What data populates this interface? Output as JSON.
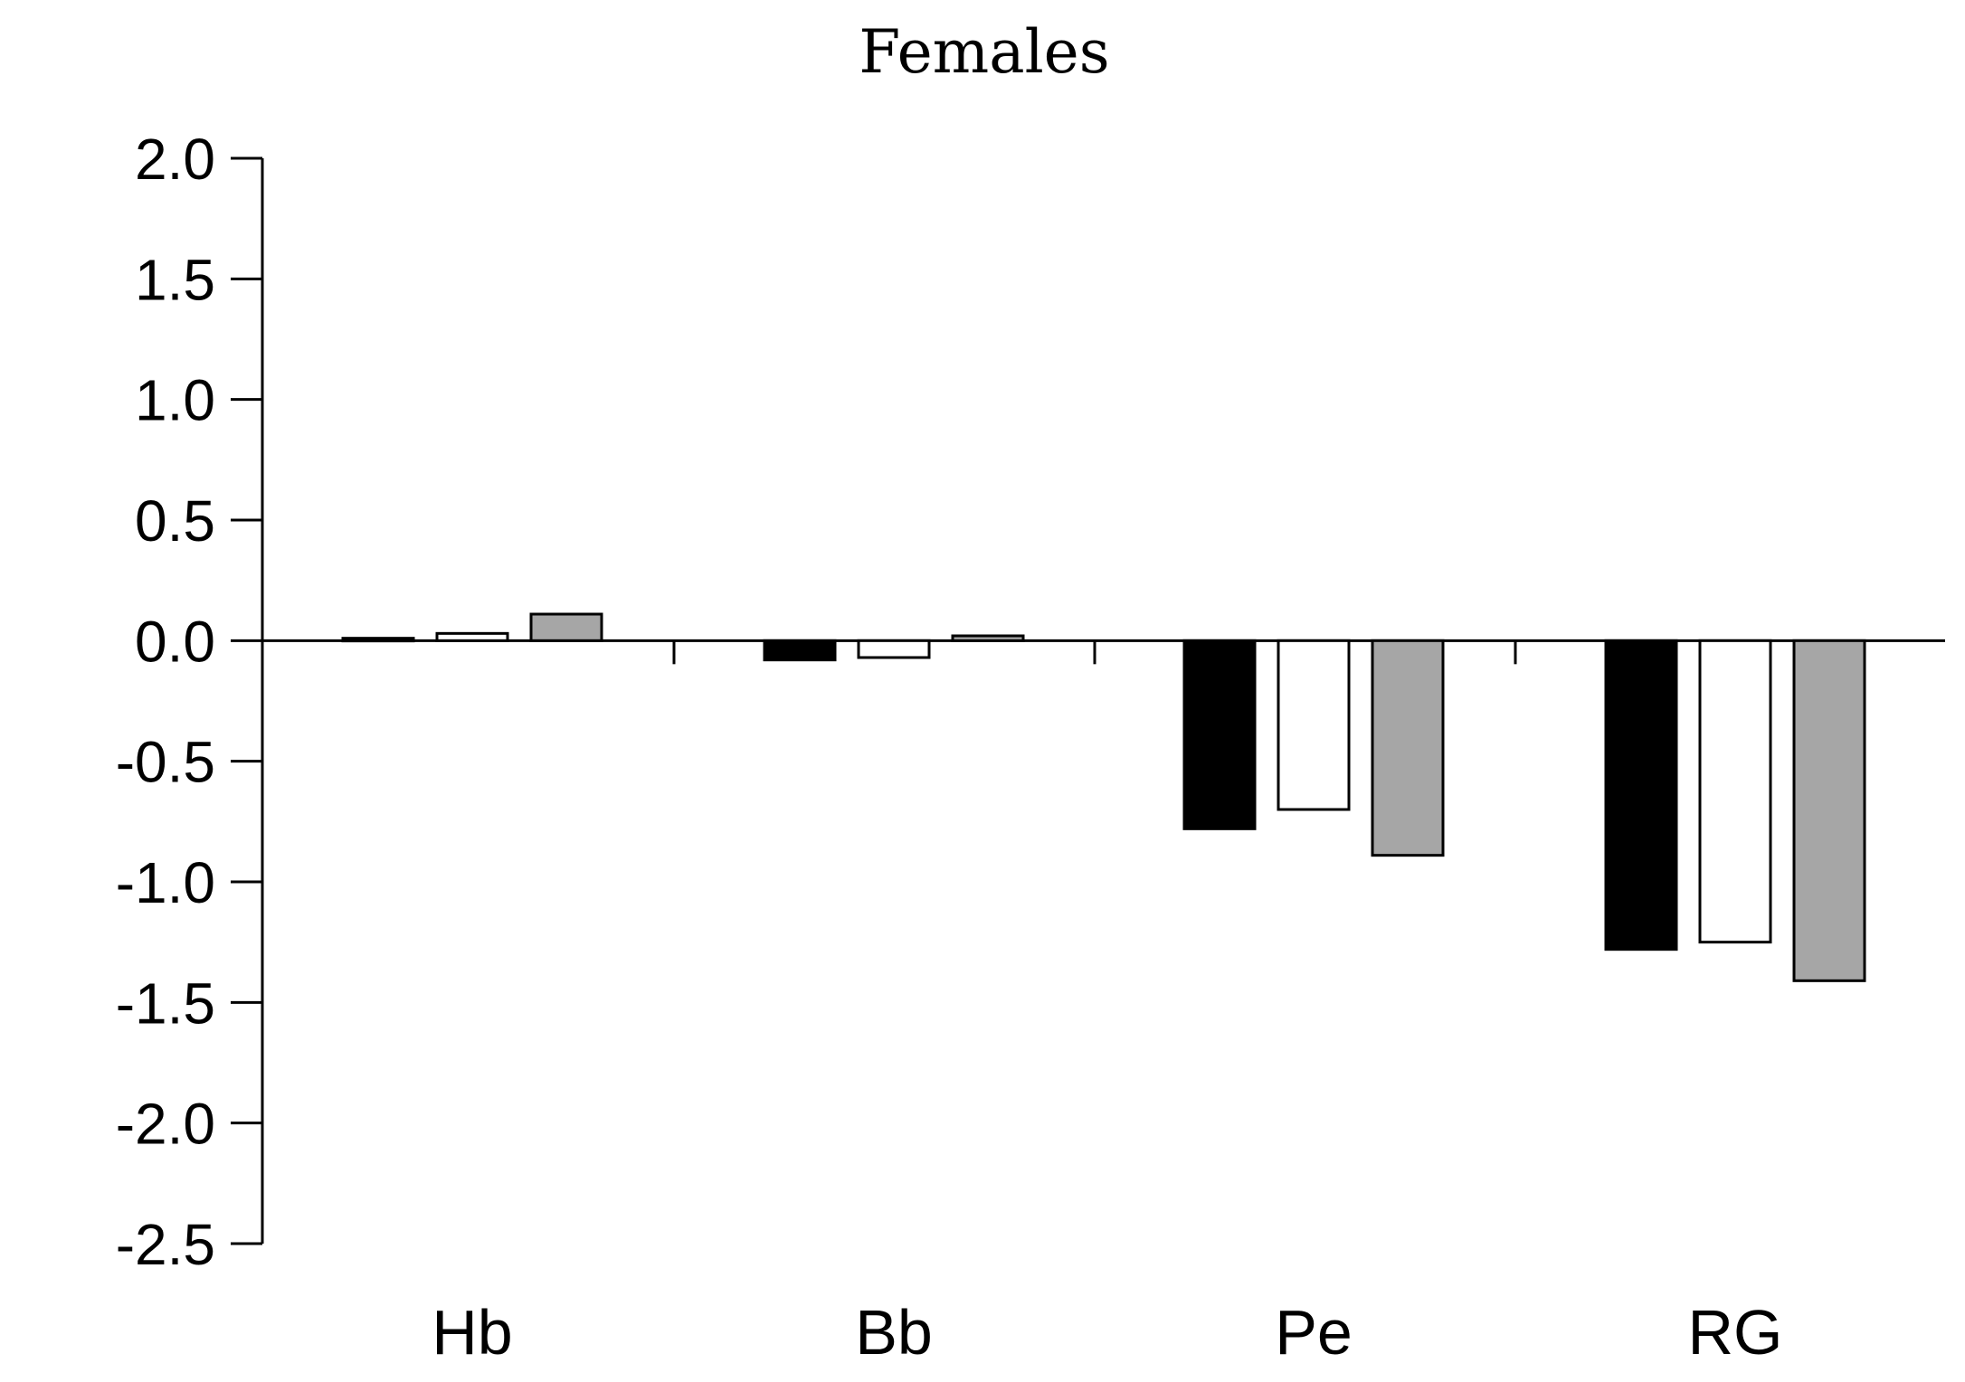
{
  "chart_data": {
    "type": "bar",
    "title": "Females",
    "xlabel": "",
    "ylabel": "",
    "categories": [
      "Hb",
      "Bb",
      "Pe",
      "RG"
    ],
    "ylim": [
      -2.5,
      2.0
    ],
    "yticks": [
      2.0,
      1.5,
      1.0,
      0.5,
      0.0,
      -0.5,
      -1.0,
      -1.5,
      -2.0,
      -2.5
    ],
    "ytick_labels": [
      "2.0",
      "1.5",
      "1.0",
      "0.5",
      "0.0",
      "-0.5",
      "-1.0",
      "-1.5",
      "-2.0",
      "-2.5"
    ],
    "grid": false,
    "legend": "none",
    "series": [
      {
        "color": "#000000",
        "values": [
          0.01,
          -0.08,
          -0.78,
          -1.28
        ]
      },
      {
        "color": "#ffffff",
        "values": [
          0.03,
          -0.07,
          -0.7,
          -1.25
        ]
      },
      {
        "color": "#a6a6a6",
        "values": [
          0.11,
          0.02,
          -0.89,
          -1.41
        ]
      }
    ]
  }
}
